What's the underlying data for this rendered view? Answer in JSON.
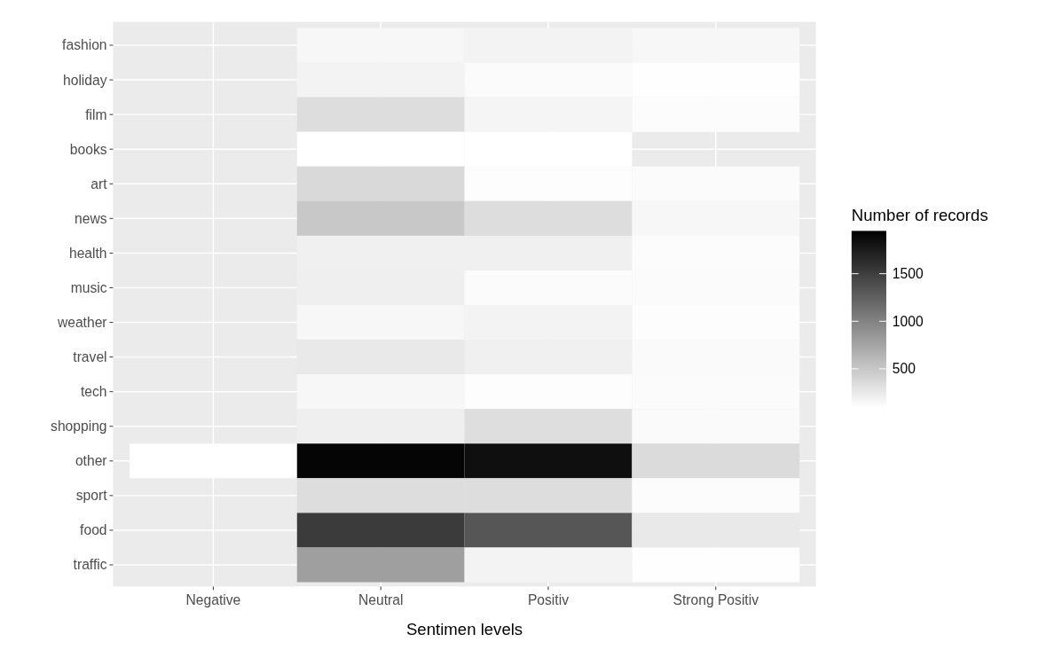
{
  "chart_data": {
    "type": "heatmap",
    "xlabel": "Sentimen levels",
    "clabel": "Number of records",
    "categories": [
      "Negative",
      "Neutral",
      "Positiv",
      "Strong Positiv"
    ],
    "y_categories": [
      "fashion",
      "holiday",
      "film",
      "books",
      "art",
      "news",
      "health",
      "music",
      "weather",
      "travel",
      "tech",
      "shopping",
      "other",
      "sport",
      "food",
      "traffic"
    ],
    "cells": [
      [
        null,
        150,
        180,
        150
      ],
      [
        null,
        180,
        120,
        100
      ],
      [
        null,
        340,
        160,
        110
      ],
      [
        null,
        90,
        90,
        null
      ],
      [
        null,
        370,
        105,
        120
      ],
      [
        null,
        490,
        340,
        150
      ],
      [
        null,
        200,
        200,
        110
      ],
      [
        null,
        210,
        120,
        120
      ],
      [
        null,
        150,
        175,
        105
      ],
      [
        null,
        250,
        200,
        130
      ],
      [
        null,
        150,
        105,
        120
      ],
      [
        null,
        210,
        330,
        130
      ],
      [
        90,
        1910,
        1840,
        350
      ],
      [
        null,
        340,
        340,
        110
      ],
      [
        null,
        1520,
        1320,
        250
      ],
      [
        null,
        790,
        180,
        100
      ]
    ],
    "clim": [
      90,
      1950
    ],
    "cticks": [
      500,
      1000,
      1500
    ],
    "grid": true
  }
}
